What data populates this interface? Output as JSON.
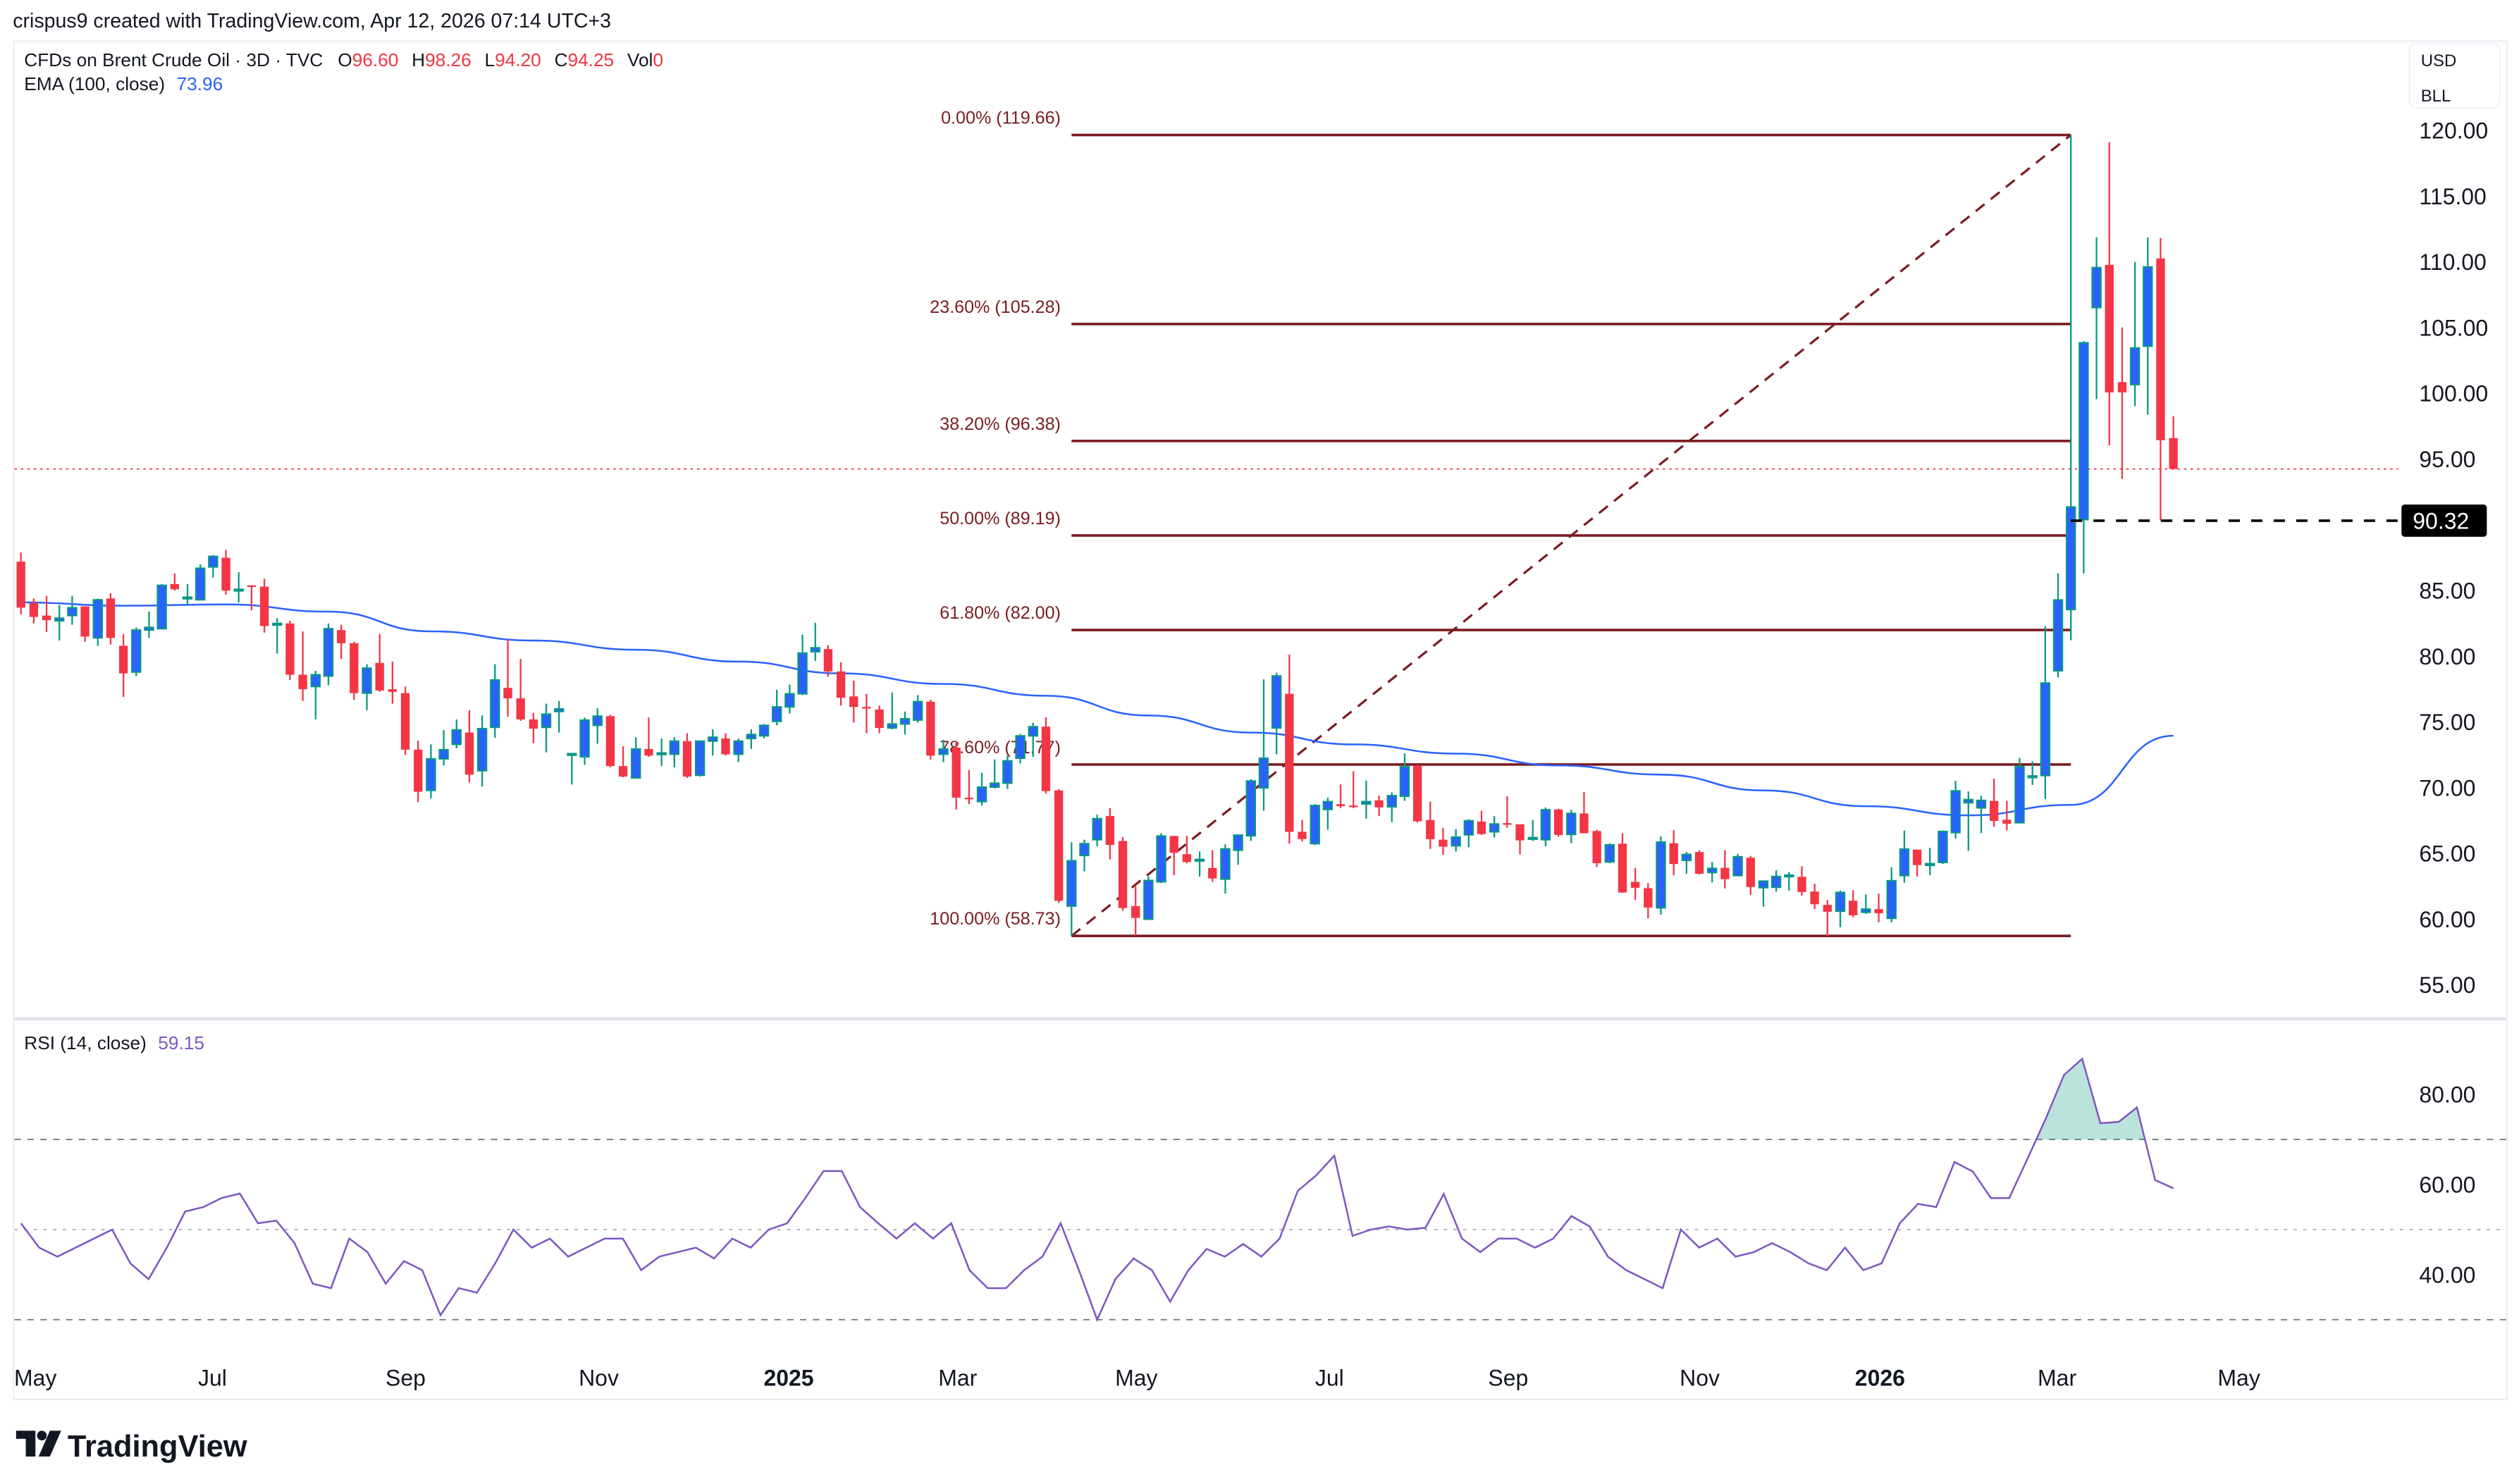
{
  "header": {
    "attribution": "crispus9 created with TradingView.com, Apr 12, 2026 07:14 UTC+3"
  },
  "legend": {
    "symbol": "CFDs on Brent Crude Oil · 3D · TVC",
    "o_label": "O",
    "o_value": "96.60",
    "h_label": "H",
    "h_value": "98.26",
    "l_label": "L",
    "l_value": "94.20",
    "c_label": "C",
    "c_value": "94.25",
    "vol_label": "Vol",
    "vol_value": "0",
    "ema_label": "EMA (100, close)",
    "ema_value": "73.96",
    "rsi_label": "RSI (14, close)",
    "rsi_value": "59.15"
  },
  "axis": {
    "currency": "USD",
    "unit": "BLL",
    "price_ticks": [
      "120.00",
      "115.00",
      "110.00",
      "105.00",
      "100.00",
      "95.00",
      "85.00",
      "80.00",
      "75.00",
      "70.00",
      "65.00",
      "60.00",
      "55.00"
    ],
    "rsi_ticks": [
      "80.00",
      "60.00",
      "40.00"
    ],
    "time_ticks": [
      "May",
      "Jul",
      "Sep",
      "Nov",
      "2025",
      "Mar",
      "May",
      "Jul",
      "Sep",
      "Nov",
      "2026",
      "Mar",
      "May"
    ],
    "marker_label": "90.32"
  },
  "colors": {
    "up_body": "#2962ff",
    "up_border": "#089981",
    "down": "#f23645",
    "ema": "#2962ff",
    "rsi": "#7e57c2",
    "fib": "#7b1c22",
    "last_price": "#f23645"
  },
  "logo": {
    "text": "TradingView"
  },
  "chart_data": {
    "type": "candlestick",
    "title": "CFDs on Brent Crude Oil · 3D · TVC",
    "ylim": [
      52,
      122
    ],
    "last_price": 94.25,
    "marker_price": 90.32,
    "candles_ohlc": [
      [
        87.2,
        87.9,
        83.2,
        83.7
      ],
      [
        84.05,
        84.4,
        82.5,
        83.0
      ],
      [
        83.1,
        84.6,
        81.85,
        82.75
      ],
      [
        82.7,
        83.9,
        81.2,
        82.9
      ],
      [
        83.1,
        84.6,
        82.4,
        83.7
      ],
      [
        83.8,
        83.8,
        81.1,
        81.5
      ],
      [
        81.4,
        84.4,
        80.8,
        84.3
      ],
      [
        84.4,
        84.8,
        80.9,
        81.4
      ],
      [
        80.8,
        81.7,
        76.9,
        78.7
      ],
      [
        78.8,
        82.2,
        78.5,
        82.0
      ],
      [
        82.0,
        83.4,
        81.4,
        82.2
      ],
      [
        82.1,
        85.5,
        82.1,
        85.4
      ],
      [
        85.5,
        86.3,
        85.0,
        85.1
      ],
      [
        84.4,
        85.5,
        83.9,
        84.5
      ],
      [
        84.3,
        87.0,
        84.3,
        86.7
      ],
      [
        86.8,
        87.7,
        86.0,
        87.6
      ],
      [
        87.5,
        88.1,
        84.7,
        85.0
      ],
      [
        85.0,
        86.4,
        84.1,
        85.1
      ],
      [
        85.4,
        85.4,
        83.5,
        85.3
      ],
      [
        85.3,
        85.9,
        81.8,
        82.3
      ],
      [
        82.4,
        82.9,
        80.2,
        82.5
      ],
      [
        82.5,
        82.7,
        78.2,
        78.6
      ],
      [
        78.6,
        81.9,
        76.6,
        77.5
      ],
      [
        77.7,
        78.9,
        75.2,
        78.6
      ],
      [
        78.5,
        82.5,
        77.8,
        82.1
      ],
      [
        82.0,
        82.4,
        79.8,
        81.0
      ],
      [
        81.0,
        81.1,
        76.7,
        77.2
      ],
      [
        77.2,
        79.4,
        75.9,
        79.1
      ],
      [
        79.5,
        81.7,
        77.3,
        77.4
      ],
      [
        77.5,
        79.6,
        76.4,
        77.3
      ],
      [
        77.2,
        77.7,
        72.5,
        72.9
      ],
      [
        72.9,
        73.6,
        68.9,
        69.7
      ],
      [
        69.8,
        73.3,
        69.2,
        72.2
      ],
      [
        72.2,
        74.4,
        71.7,
        72.9
      ],
      [
        73.3,
        75.2,
        73.0,
        74.4
      ],
      [
        74.2,
        75.9,
        70.4,
        71.0
      ],
      [
        71.3,
        75.5,
        70.1,
        74.5
      ],
      [
        74.6,
        79.4,
        73.8,
        78.2
      ],
      [
        77.6,
        81.3,
        75.4,
        76.8
      ],
      [
        76.8,
        79.8,
        75.1,
        75.2
      ],
      [
        75.2,
        75.7,
        73.4,
        74.5
      ],
      [
        74.6,
        76.4,
        72.7,
        75.6
      ],
      [
        75.8,
        76.6,
        74.2,
        76.0
      ],
      [
        72.55,
        72.6,
        70.25,
        72.6
      ],
      [
        72.35,
        75.35,
        71.75,
        75.15
      ],
      [
        74.75,
        76.05,
        73.35,
        75.45
      ],
      [
        75.45,
        75.55,
        71.55,
        71.65
      ],
      [
        71.65,
        73.15,
        70.8,
        70.85
      ],
      [
        70.75,
        73.85,
        70.75,
        72.95
      ],
      [
        72.95,
        75.35,
        72.35,
        72.45
      ],
      [
        72.55,
        73.75,
        71.65,
        72.65
      ],
      [
        72.55,
        73.85,
        71.55,
        73.55
      ],
      [
        73.55,
        74.15,
        70.75,
        70.85
      ],
      [
        70.95,
        73.55,
        70.85,
        73.55
      ],
      [
        73.55,
        74.45,
        72.45,
        73.85
      ],
      [
        73.75,
        74.15,
        72.45,
        72.55
      ],
      [
        72.55,
        73.75,
        71.95,
        73.55
      ],
      [
        73.75,
        74.45,
        72.95,
        74.05
      ],
      [
        73.95,
        74.85,
        73.75,
        74.75
      ],
      [
        75.05,
        77.45,
        74.75,
        76.15
      ],
      [
        76.15,
        77.85,
        75.65,
        77.15
      ],
      [
        77.15,
        81.65,
        77.05,
        80.25
      ],
      [
        80.35,
        82.55,
        79.65,
        80.65
      ],
      [
        80.55,
        80.85,
        78.45,
        78.85
      ],
      [
        78.85,
        79.55,
        76.25,
        76.85
      ],
      [
        76.95,
        78.15,
        74.95,
        76.15
      ],
      [
        76.15,
        77.15,
        74.15,
        76.1
      ],
      [
        75.95,
        76.25,
        74.15,
        74.55
      ],
      [
        74.55,
        77.25,
        74.45,
        74.85
      ],
      [
        74.85,
        75.8,
        74.05,
        75.25
      ],
      [
        75.15,
        77.05,
        74.95,
        76.55
      ],
      [
        76.55,
        76.7,
        72.15,
        72.45
      ],
      [
        72.55,
        73.65,
        71.95,
        72.95
      ],
      [
        73.05,
        73.55,
        68.35,
        69.25
      ],
      [
        69.25,
        71.35,
        68.75,
        69.15
      ],
      [
        68.95,
        71.15,
        68.65,
        70.05
      ],
      [
        70.05,
        72.15,
        69.95,
        70.35
      ],
      [
        70.35,
        72.45,
        69.9,
        72.05
      ],
      [
        72.25,
        74.1,
        71.85,
        73.95
      ],
      [
        73.95,
        74.95,
        72.35,
        74.65
      ],
      [
        74.65,
        75.35,
        69.55,
        69.75
      ],
      [
        69.8,
        69.9,
        61.25,
        61.4
      ],
      [
        61.0,
        65.85,
        58.73,
        64.45
      ],
      [
        64.85,
        66.05,
        63.65,
        65.75
      ],
      [
        66.05,
        67.95,
        65.55,
        67.65
      ],
      [
        67.85,
        68.45,
        64.55,
        65.65
      ],
      [
        65.95,
        66.25,
        60.65,
        60.85
      ],
      [
        61.0,
        62.5,
        58.75,
        60.1
      ],
      [
        60.0,
        63.25,
        60.0,
        62.95
      ],
      [
        62.85,
        66.55,
        62.75,
        66.33
      ],
      [
        66.33,
        66.35,
        63.35,
        65.05
      ],
      [
        64.95,
        66.35,
        64.25,
        64.35
      ],
      [
        64.45,
        65.15,
        63.25,
        64.55
      ],
      [
        63.9,
        65.25,
        62.85,
        63.1
      ],
      [
        63.05,
        65.7,
        61.95,
        65.35
      ],
      [
        65.25,
        66.45,
        64.15,
        66.4
      ],
      [
        66.35,
        70.65,
        65.95,
        70.52
      ],
      [
        69.99,
        78.25,
        68.25,
        72.25
      ],
      [
        74.55,
        78.75,
        72.55,
        78.51
      ],
      [
        77.15,
        80.12,
        65.75,
        66.65
      ],
      [
        66.65,
        67.55,
        65.92,
        66.1
      ],
      [
        65.75,
        68.77,
        65.65,
        68.65
      ],
      [
        68.35,
        69.25,
        66.81,
        68.95
      ],
      [
        68.75,
        70.25,
        68.45,
        68.6
      ],
      [
        68.65,
        71.25,
        68.45,
        68.55
      ],
      [
        68.77,
        70.55,
        67.65,
        68.95
      ],
      [
        69.05,
        69.4,
        67.85,
        68.51
      ],
      [
        68.55,
        69.65,
        67.4,
        69.4
      ],
      [
        69.35,
        72.62,
        69.01,
        71.6
      ],
      [
        71.68,
        71.75,
        67.35,
        67.45
      ],
      [
        67.55,
        68.95,
        65.35,
        66.09
      ],
      [
        66.05,
        66.95,
        64.9,
        65.52
      ],
      [
        65.59,
        66.85,
        65.15,
        66.25
      ],
      [
        66.42,
        67.61,
        65.47,
        67.49
      ],
      [
        67.43,
        68.25,
        66.41,
        66.48
      ],
      [
        66.65,
        67.84,
        66.22,
        67.25
      ],
      [
        67.31,
        69.35,
        66.95,
        67.22
      ],
      [
        67.22,
        67.22,
        64.93,
        66.0
      ],
      [
        66.15,
        67.55,
        65.95,
        66.21
      ],
      [
        66.05,
        68.51,
        65.55,
        68.33
      ],
      [
        68.35,
        68.42,
        66.27,
        66.41
      ],
      [
        66.45,
        68.33,
        65.79,
        68.05
      ],
      [
        68.05,
        69.67,
        66.54,
        66.54
      ],
      [
        66.71,
        66.8,
        63.97,
        64.26
      ],
      [
        64.36,
        65.77,
        64.26,
        65.66
      ],
      [
        65.75,
        66.55,
        62.0,
        62.03
      ],
      [
        62.84,
        63.9,
        61.46,
        62.39
      ],
      [
        62.36,
        62.75,
        60.07,
        60.89
      ],
      [
        60.87,
        66.3,
        60.34,
        65.87
      ],
      [
        65.78,
        66.77,
        63.34,
        64.2
      ],
      [
        64.48,
        65.11,
        63.46,
        64.93
      ],
      [
        65.11,
        65.25,
        63.41,
        63.46
      ],
      [
        63.55,
        64.36,
        62.8,
        63.87
      ],
      [
        63.91,
        65.25,
        62.34,
        63.05
      ],
      [
        63.32,
        64.97,
        63.3,
        64.75
      ],
      [
        64.68,
        64.82,
        61.86,
        62.45
      ],
      [
        62.4,
        62.9,
        60.96,
        62.9
      ],
      [
        62.43,
        63.73,
        62.11,
        63.25
      ],
      [
        63.32,
        63.6,
        62.18,
        63.36
      ],
      [
        63.23,
        64.03,
        61.8,
        62.07
      ],
      [
        62.11,
        62.7,
        60.78,
        61.14
      ],
      [
        61.09,
        61.46,
        58.7,
        60.57
      ],
      [
        60.61,
        62.18,
        59.39,
        62.04
      ],
      [
        61.41,
        62.21,
        60.16,
        60.3
      ],
      [
        60.53,
        61.89,
        60.4,
        60.77
      ],
      [
        60.77,
        61.95,
        59.77,
        60.46
      ],
      [
        60.07,
        63.94,
        59.77,
        62.93
      ],
      [
        63.32,
        66.75,
        62.79,
        65.34
      ],
      [
        65.3,
        65.3,
        63.25,
        64.12
      ],
      [
        64.1,
        65.43,
        63.34,
        64.23
      ],
      [
        64.32,
        66.75,
        64.21,
        66.68
      ],
      [
        66.59,
        70.52,
        66.14,
        69.77
      ],
      [
        68.86,
        69.72,
        65.2,
        69.1
      ],
      [
        68.47,
        69.39,
        66.55,
        69.04
      ],
      [
        69.0,
        70.7,
        67.04,
        67.48
      ],
      [
        67.57,
        69.0,
        66.77,
        67.27
      ],
      [
        67.34,
        72.27,
        67.3,
        71.63
      ],
      [
        70.84,
        72.0,
        70.22,
        70.9
      ],
      [
        70.93,
        82.3,
        69.14,
        77.97
      ],
      [
        78.9,
        86.3,
        78.4,
        84.29
      ],
      [
        83.56,
        119.66,
        81.22,
        91.36
      ],
      [
        90.4,
        103.98,
        86.3,
        103.85
      ],
      [
        106.53,
        111.86,
        99.56,
        109.57
      ],
      [
        109.78,
        119.11,
        96.05,
        100.08
      ],
      [
        100.86,
        105.02,
        93.5,
        100.08
      ],
      [
        100.67,
        110.0,
        99.04,
        103.46
      ],
      [
        103.59,
        111.86,
        98.39,
        109.62
      ],
      [
        110.27,
        111.83,
        90.32,
        96.44
      ],
      [
        96.6,
        98.26,
        94.2,
        94.25
      ]
    ],
    "ema_100_sampled_every_8_bars": [
      84.1,
      83.85,
      83.95,
      83.4,
      81.9,
      81.2,
      80.5,
      79.6,
      78.7,
      77.9,
      77.0,
      75.5,
      74.2,
      73.3,
      72.6,
      71.7,
      71.0,
      69.8,
      68.6,
      67.9,
      68.7,
      73.96
    ],
    "fibonacci": {
      "levels": [
        {
          "label": "0.00% (119.66)",
          "price": 119.66
        },
        {
          "label": "23.60% (105.28)",
          "price": 105.28
        },
        {
          "label": "38.20% (96.38)",
          "price": 96.38
        },
        {
          "label": "50.00% (89.19)",
          "price": 89.19
        },
        {
          "label": "61.80% (82.00)",
          "price": 82.0
        },
        {
          "label": "78.60% (71.77)",
          "price": 71.77
        },
        {
          "label": "100.00% (58.73)",
          "price": 58.73
        }
      ]
    },
    "rsi": {
      "period": 14,
      "ylim": [
        25,
        95
      ],
      "bands": [
        70,
        50,
        30
      ],
      "values": [
        51.4,
        46,
        44,
        46,
        48,
        50,
        42.5,
        39,
        46,
        54,
        55,
        57,
        58,
        51.4,
        52,
        47,
        38,
        37,
        48,
        45,
        38,
        43,
        41,
        31,
        37,
        36,
        42.5,
        50,
        46,
        48,
        44,
        46,
        48,
        48,
        41,
        44,
        45,
        46,
        43.6,
        48,
        46,
        50,
        51.4,
        57,
        63,
        63,
        55,
        51.4,
        48,
        51.4,
        48,
        51.4,
        41,
        37,
        37,
        41,
        44,
        51.4,
        41,
        30,
        39,
        43.6,
        41,
        34,
        41,
        45.7,
        44,
        46.8,
        44,
        48,
        58.6,
        62,
        66.4,
        48.6,
        50,
        50.7,
        50,
        50.4,
        57.9,
        48,
        45,
        48,
        48,
        46,
        48,
        53,
        50.7,
        44,
        41,
        39,
        37,
        50,
        46,
        48,
        44,
        45,
        47,
        45,
        42.5,
        41,
        46,
        41,
        42.5,
        51.4,
        55.7,
        55,
        65,
        62.9,
        57,
        57,
        65.7,
        74.6,
        84.3,
        87.9,
        73.6,
        73.9,
        77.1,
        61,
        59.15
      ]
    }
  }
}
